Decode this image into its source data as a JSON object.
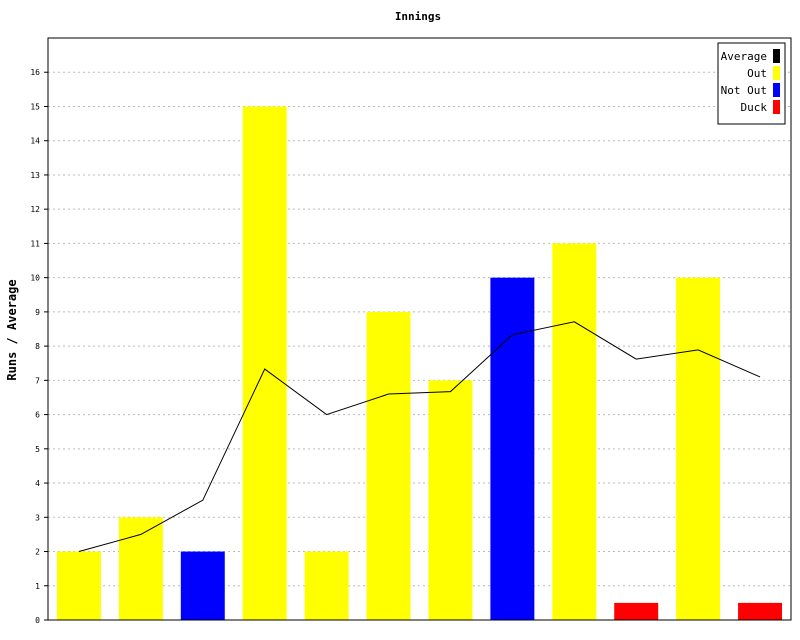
{
  "chart_data": {
    "type": "bar",
    "title": "Innings",
    "xlabel": "",
    "ylabel": "Runs / Average",
    "ylim": [
      0,
      17
    ],
    "yticks": [
      0,
      1,
      2,
      3,
      4,
      5,
      6,
      7,
      8,
      9,
      10,
      11,
      12,
      13,
      14,
      15,
      16
    ],
    "grid": true,
    "legend_position": "top-right",
    "legend": [
      {
        "label": "Average",
        "color": "#000000"
      },
      {
        "label": "Out",
        "color": "#ffff00"
      },
      {
        "label": "Not Out",
        "color": "#0000ff"
      },
      {
        "label": "Duck",
        "color": "#ff0000"
      }
    ],
    "bars": [
      {
        "value": 2,
        "kind": "Out"
      },
      {
        "value": 3,
        "kind": "Out"
      },
      {
        "value": 2,
        "kind": "Not Out"
      },
      {
        "value": 15,
        "kind": "Out"
      },
      {
        "value": 2,
        "kind": "Out"
      },
      {
        "value": 9,
        "kind": "Out"
      },
      {
        "value": 7,
        "kind": "Out"
      },
      {
        "value": 10,
        "kind": "Not Out"
      },
      {
        "value": 11,
        "kind": "Out"
      },
      {
        "value": 0.5,
        "kind": "Duck"
      },
      {
        "value": 10,
        "kind": "Out"
      },
      {
        "value": 0.5,
        "kind": "Duck"
      }
    ],
    "average": [
      2.0,
      2.5,
      3.5,
      7.33,
      6.0,
      6.6,
      6.67,
      8.33,
      8.71,
      7.62,
      7.89,
      7.1
    ]
  }
}
